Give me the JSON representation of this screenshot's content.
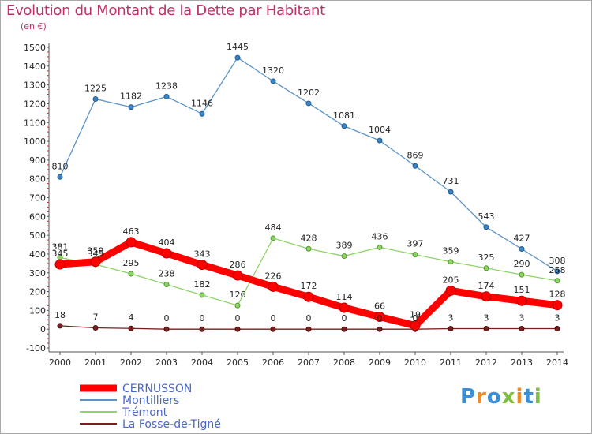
{
  "title": "Evolution du Montant de la Dette par Habitant",
  "subtitle": "(en €)",
  "logo": {
    "text": "Proxiti",
    "colors": [
      "#3b8fd4",
      "#f08a24",
      "#3b8fd4",
      "#7fbf3f",
      "#f08a24",
      "#3b8fd4",
      "#7fbf3f"
    ]
  },
  "chart_data": {
    "type": "line",
    "x": [
      2000,
      2001,
      2002,
      2003,
      2004,
      2005,
      2006,
      2007,
      2008,
      2009,
      2010,
      2011,
      2012,
      2013,
      2014
    ],
    "ylim": [
      -100,
      1500
    ],
    "yticks": [
      -100,
      0,
      100,
      200,
      300,
      400,
      500,
      600,
      700,
      800,
      900,
      1000,
      1100,
      1200,
      1300,
      1400,
      1500
    ],
    "grid": false,
    "legend_position": "bottom-left",
    "series": [
      {
        "name": "CERNUSSON",
        "color": "#ff0000",
        "label_color": "#222222",
        "values": [
          345,
          359,
          463,
          404,
          343,
          286,
          226,
          172,
          114,
          66,
          19,
          205,
          174,
          151,
          128
        ],
        "labels": [
          "345",
          "359",
          "463",
          "404",
          "343",
          "286",
          "226",
          "172",
          "114",
          "66",
          "19",
          "205",
          "174",
          "151",
          "128"
        ]
      },
      {
        "name": "Montilliers",
        "color": "#5b93c7",
        "label_color": "#222222",
        "values": [
          810,
          1225,
          1182,
          1238,
          1146,
          1445,
          1320,
          1202,
          1081,
          1004,
          869,
          731,
          543,
          427,
          308
        ],
        "labels": [
          "810",
          "1225",
          "1182",
          "1238",
          "1146",
          "1445",
          "1320",
          "1202",
          "1081",
          "1004",
          "869",
          "731",
          "543",
          "427",
          "308"
        ]
      },
      {
        "name": "Trémont",
        "color": "#8fd468",
        "label_color": "#222222",
        "values": [
          381,
          345,
          295,
          238,
          182,
          126,
          484,
          428,
          389,
          436,
          397,
          359,
          325,
          290,
          258
        ],
        "labels": [
          "381",
          "345",
          "295",
          "238",
          "182",
          "126",
          "484",
          "428",
          "389",
          "436",
          "397",
          "359",
          "325",
          "290",
          "258"
        ]
      },
      {
        "name": "La Fosse-de-Tigné",
        "color": "#7a1f1f",
        "label_color": "#222222",
        "values": [
          18,
          7,
          4,
          0,
          0,
          0,
          0,
          0,
          0,
          0,
          0,
          3,
          3,
          3,
          3
        ],
        "labels": [
          "18",
          "7",
          "4",
          "0",
          "0",
          "0",
          "0",
          "0",
          "0",
          "0",
          "0",
          "3",
          "3",
          "3",
          "3"
        ]
      }
    ]
  }
}
